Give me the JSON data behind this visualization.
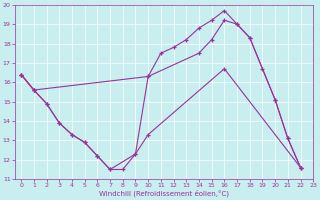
{
  "xlabel": "Windchill (Refroidissement éolien,°C)",
  "xlim": [
    -0.5,
    23
  ],
  "ylim": [
    11,
    20
  ],
  "xticks": [
    0,
    1,
    2,
    3,
    4,
    5,
    6,
    7,
    8,
    9,
    10,
    11,
    12,
    13,
    14,
    15,
    16,
    17,
    18,
    19,
    20,
    21,
    22,
    23
  ],
  "yticks": [
    11,
    12,
    13,
    14,
    15,
    16,
    17,
    18,
    19,
    20
  ],
  "bg_color": "#c8eef0",
  "line_color": "#993399",
  "line_zigzag": {
    "x": [
      0,
      1,
      2,
      3,
      4,
      5,
      6,
      7,
      8,
      9,
      10,
      11,
      12,
      13,
      14,
      15,
      16,
      17,
      18,
      19,
      20,
      21,
      22
    ],
    "y": [
      16.4,
      15.6,
      14.9,
      13.9,
      13.3,
      12.9,
      12.2,
      11.5,
      11.5,
      12.3,
      16.3,
      17.5,
      17.8,
      18.2,
      18.8,
      19.2,
      19.7,
      19.0,
      18.3,
      16.7,
      15.1,
      13.1,
      11.6
    ]
  },
  "line_upper": {
    "x": [
      0,
      1,
      10,
      14,
      15,
      16,
      17,
      18,
      20,
      21,
      22
    ],
    "y": [
      16.4,
      15.6,
      16.3,
      17.5,
      18.2,
      19.2,
      19.0,
      18.3,
      15.1,
      13.1,
      11.6
    ]
  },
  "line_lower": {
    "x": [
      0,
      1,
      2,
      3,
      4,
      5,
      6,
      7,
      9,
      10,
      16,
      22
    ],
    "y": [
      16.4,
      15.6,
      14.9,
      13.9,
      13.3,
      12.9,
      12.2,
      11.5,
      12.3,
      13.3,
      16.7,
      11.6
    ]
  }
}
